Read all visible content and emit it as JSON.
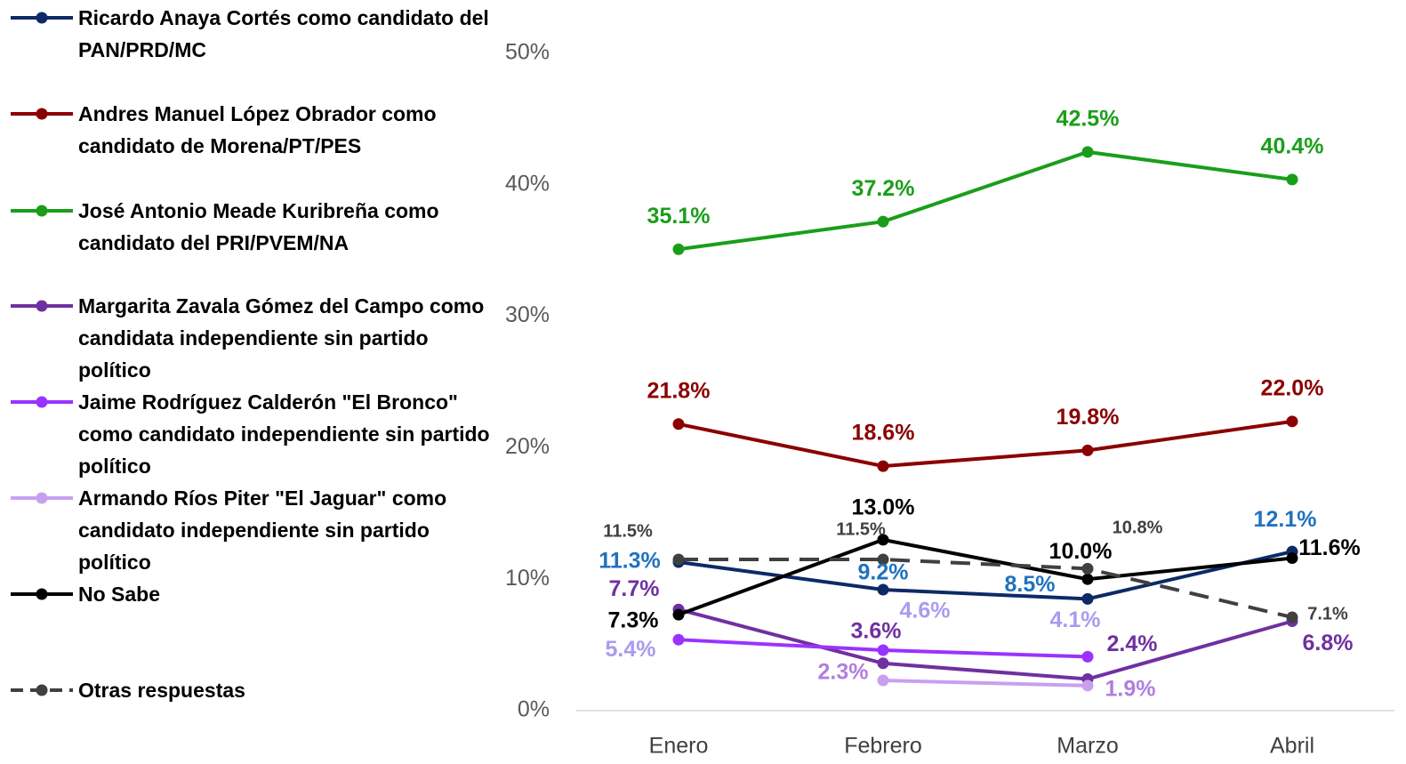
{
  "chart_data": {
    "type": "line",
    "categories": [
      "Enero",
      "Febrero",
      "Marzo",
      "Abril"
    ],
    "ylim": [
      0,
      50
    ],
    "yticks": [
      {
        "value": 0,
        "label": "0%"
      },
      {
        "value": 10,
        "label": "10%"
      },
      {
        "value": 20,
        "label": "20%"
      },
      {
        "value": 30,
        "label": "30%"
      },
      {
        "value": 40,
        "label": "40%"
      },
      {
        "value": 50,
        "label": "50%"
      }
    ],
    "grid": false,
    "legend": "left",
    "series": [
      {
        "name": "Ricardo Anaya Cortés como candidato del PAN/PRD/MC",
        "color": "#0d2a66",
        "label_color": "#1f72c0",
        "values": [
          11.3,
          9.2,
          8.5,
          12.1
        ],
        "value_labels": [
          "11.3%",
          "9.2%",
          "8.5%",
          "12.1%"
        ]
      },
      {
        "name": "Andres Manuel López Obrador como candidato de Morena/PT/PES",
        "color": "#8b0000",
        "label_color": "#8b0000",
        "values": [
          21.8,
          18.6,
          19.8,
          22.0
        ],
        "value_labels": [
          "21.8%",
          "18.6%",
          "19.8%",
          "22.0%"
        ]
      },
      {
        "name": "José Antonio Meade Kuribreña como candidato del PRI/PVEM/NA",
        "color": "#1a9e1a",
        "label_color": "#1a9e1a",
        "values": [
          35.1,
          37.2,
          42.5,
          40.4
        ],
        "value_labels": [
          "35.1%",
          "37.2%",
          "42.5%",
          "40.4%"
        ]
      },
      {
        "name": "Margarita Zavala Gómez del Campo como candidata independiente sin partido político",
        "color": "#7030a0",
        "label_color": "#7030a0",
        "values": [
          7.7,
          3.6,
          2.4,
          6.8
        ],
        "value_labels": [
          "7.7%",
          "3.6%",
          "2.4%",
          "6.8%"
        ]
      },
      {
        "name": "Jaime Rodríguez Calderón \"El Bronco\" como candidato independiente sin partido político",
        "color": "#9933ff",
        "label_color": "#a79cf0",
        "values": [
          5.4,
          4.6,
          4.1,
          null
        ],
        "value_labels": [
          "5.4%",
          "4.6%",
          "4.1%",
          null
        ]
      },
      {
        "name": "Armando Ríos Piter \"El Jaguar\" como candidato independiente sin partido político",
        "color": "#c9a0f0",
        "label_color": "#b07fe0",
        "values": [
          null,
          2.3,
          1.9,
          null
        ],
        "value_labels": [
          null,
          "2.3%",
          "1.9%",
          null
        ]
      },
      {
        "name": " No Sabe",
        "color": "#000000",
        "label_color": "#000000",
        "values": [
          7.3,
          13.0,
          10.0,
          11.6
        ],
        "value_labels": [
          "7.3%",
          "13.0%",
          "10.0%",
          "11.6%"
        ]
      },
      {
        "name": "Otras respuestas",
        "color": "#404040",
        "label_color": "#404040",
        "dashed": true,
        "values": [
          11.5,
          11.5,
          10.8,
          7.1
        ],
        "value_labels": [
          "11.5%",
          "11.5%",
          "10.8%",
          "7.1%"
        ]
      }
    ]
  }
}
